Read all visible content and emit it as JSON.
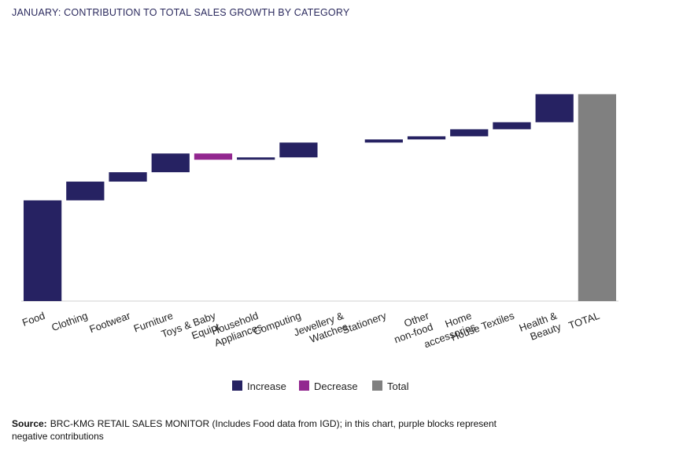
{
  "chart_data": {
    "type": "waterfall",
    "title": "JANUARY: CONTRIBUTION TO TOTAL SALES GROWTH BY CATEGORY",
    "categories": [
      [
        "Food"
      ],
      [
        "Clothing"
      ],
      [
        "Footwear"
      ],
      [
        "Furniture"
      ],
      [
        "Toys & Baby",
        "Equipt"
      ],
      [
        "Household",
        "Appliances"
      ],
      [
        "Computing"
      ],
      [
        "Jewellery &",
        "Watches"
      ],
      [
        "Stationery"
      ],
      [
        "Other",
        "non-food"
      ],
      [
        "Home",
        "accessories"
      ],
      [
        "House Textiles"
      ],
      [
        "Health &",
        "Beauty"
      ],
      [
        "TOTAL"
      ]
    ],
    "values": [
      12.9,
      2.4,
      1.2,
      2.4,
      -0.8,
      0.3,
      1.9,
      0,
      0.4,
      0.4,
      0.9,
      0.9,
      3.6,
      26.5
    ],
    "ylim": [
      0,
      30
    ],
    "legend": [
      {
        "name": "Increase",
        "color": "#262262"
      },
      {
        "name": "Decrease",
        "color": "#92278f"
      },
      {
        "name": "Total",
        "color": "#808080"
      }
    ],
    "source_label": "Source:",
    "source": [
      "BRC-KMG RETAIL SALES MONITOR (Includes Food data from IGD); in this chart, purple blocks represent",
      "negative contributions"
    ]
  }
}
